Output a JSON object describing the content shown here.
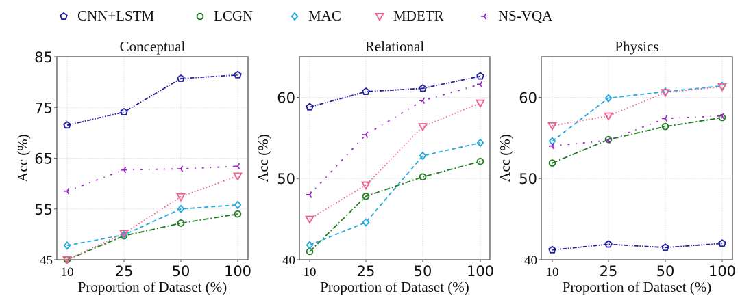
{
  "legend": {
    "placement": "top-center",
    "items": [
      {
        "name": "CNN+LSTM",
        "color": "#1f1f9f",
        "marker": "pentagon",
        "dash": "dashdotdot"
      },
      {
        "name": "LCGN",
        "color": "#1e7d1e",
        "marker": "circle",
        "dash": "dashdot"
      },
      {
        "name": "MAC",
        "color": "#22a8dc",
        "marker": "diamond",
        "dash": "dashed"
      },
      {
        "name": "MDETR",
        "color": "#ef5f8d",
        "marker": "triangle-down",
        "dash": "dotted"
      },
      {
        "name": "NS-VQA",
        "color": "#9b24c8",
        "marker": "tri-left",
        "dash": "loosedashdot"
      }
    ]
  },
  "chart_data": [
    {
      "type": "line",
      "title": "Conceptual",
      "xlabel": "Proportion of Dataset (%)",
      "ylabel": "Acc (%)",
      "categories": [
        "10",
        "25",
        "50",
        "100"
      ],
      "ylim": [
        45,
        85
      ],
      "yticks": [
        45,
        55,
        65,
        75,
        85
      ],
      "grid": true,
      "series": [
        {
          "name": "CNN+LSTM",
          "values": [
            71.5,
            74.1,
            80.7,
            81.4
          ]
        },
        {
          "name": "LCGN",
          "values": [
            45.0,
            49.7,
            52.2,
            54.0
          ]
        },
        {
          "name": "MAC",
          "values": [
            47.8,
            49.9,
            55.0,
            55.8
          ]
        },
        {
          "name": "MDETR",
          "values": [
            45.0,
            50.2,
            57.4,
            61.5
          ]
        },
        {
          "name": "NS-VQA",
          "values": [
            58.5,
            62.7,
            62.9,
            63.4
          ]
        }
      ]
    },
    {
      "type": "line",
      "title": "Relational",
      "xlabel": "Proportion of Dataset (%)",
      "ylabel": "Acc (%)",
      "categories": [
        "10",
        "25",
        "50",
        "100"
      ],
      "ylim": [
        40,
        65
      ],
      "yticks": [
        40,
        50,
        60
      ],
      "grid": true,
      "series": [
        {
          "name": "CNN+LSTM",
          "values": [
            58.8,
            60.7,
            61.1,
            62.6
          ]
        },
        {
          "name": "LCGN",
          "values": [
            41.0,
            47.8,
            50.2,
            52.1
          ]
        },
        {
          "name": "MAC",
          "values": [
            41.8,
            44.6,
            52.8,
            54.4
          ]
        },
        {
          "name": "MDETR",
          "values": [
            45.0,
            49.2,
            56.4,
            59.3
          ]
        },
        {
          "name": "NS-VQA",
          "values": [
            48.0,
            55.4,
            59.6,
            61.6
          ]
        }
      ]
    },
    {
      "type": "line",
      "title": "Physics",
      "xlabel": "Proportion of Dataset (%)",
      "ylabel": "Acc (%)",
      "categories": [
        "10",
        "25",
        "50",
        "100"
      ],
      "ylim": [
        40,
        65
      ],
      "yticks": [
        40,
        50,
        60
      ],
      "grid": true,
      "series": [
        {
          "name": "CNN+LSTM",
          "values": [
            41.2,
            41.9,
            41.5,
            42.0
          ]
        },
        {
          "name": "LCGN",
          "values": [
            51.9,
            54.8,
            56.4,
            57.5
          ]
        },
        {
          "name": "MAC",
          "values": [
            54.6,
            59.9,
            60.7,
            61.4
          ]
        },
        {
          "name": "MDETR",
          "values": [
            56.5,
            57.7,
            60.6,
            61.3
          ]
        },
        {
          "name": "NS-VQA",
          "values": [
            54.0,
            54.7,
            57.4,
            57.7
          ]
        }
      ]
    }
  ]
}
